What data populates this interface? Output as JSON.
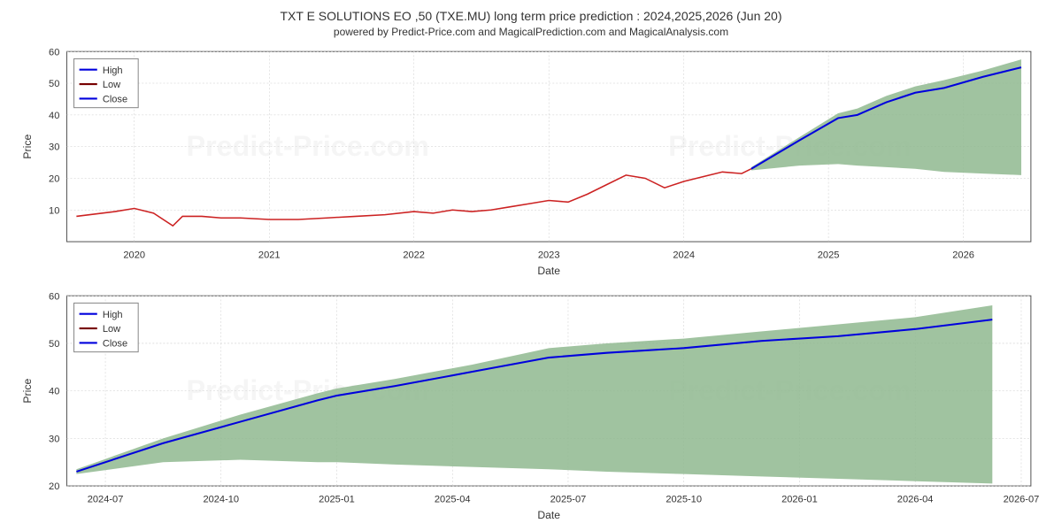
{
  "chart_title": "TXT E SOLUTIONS EO ,50 (TXE.MU) long term price prediction : 2024,2025,2026 (Jun 20)",
  "chart_subtitle": "powered by Predict-Price.com and MagicalPrediction.com and MagicalAnalysis.com",
  "watermark": "Predict-Price.com",
  "top_chart": {
    "type": "line_with_area",
    "ylabel": "Price",
    "xlabel": "Date",
    "ylim": [
      0,
      60
    ],
    "yticks": [
      10,
      20,
      30,
      40,
      50,
      60
    ],
    "xticks": [
      "2020",
      "2021",
      "2022",
      "2023",
      "2024",
      "2025",
      "2026"
    ],
    "xtick_positions": [
      0.07,
      0.21,
      0.36,
      0.5,
      0.64,
      0.79,
      0.93
    ],
    "legend": {
      "items": [
        "High",
        "Low",
        "Close"
      ],
      "colors": [
        "#0000dd",
        "#770000",
        "#0000dd"
      ]
    },
    "background_color": "#ffffff",
    "grid_color": "#cccccc",
    "historical_line": {
      "color": "#cc2222",
      "data": [
        [
          0.01,
          8.0
        ],
        [
          0.05,
          9.5
        ],
        [
          0.07,
          10.5
        ],
        [
          0.09,
          9.0
        ],
        [
          0.11,
          5.0
        ],
        [
          0.12,
          8.0
        ],
        [
          0.14,
          8.0
        ],
        [
          0.16,
          7.5
        ],
        [
          0.18,
          7.5
        ],
        [
          0.21,
          7.0
        ],
        [
          0.24,
          7.0
        ],
        [
          0.27,
          7.5
        ],
        [
          0.3,
          8.0
        ],
        [
          0.33,
          8.5
        ],
        [
          0.36,
          9.5
        ],
        [
          0.38,
          9.0
        ],
        [
          0.4,
          10.0
        ],
        [
          0.42,
          9.5
        ],
        [
          0.44,
          10.0
        ],
        [
          0.46,
          11.0
        ],
        [
          0.48,
          12.0
        ],
        [
          0.5,
          13.0
        ],
        [
          0.52,
          12.5
        ],
        [
          0.54,
          15.0
        ],
        [
          0.56,
          18.0
        ],
        [
          0.58,
          21.0
        ],
        [
          0.6,
          20.0
        ],
        [
          0.62,
          17.0
        ],
        [
          0.64,
          19.0
        ],
        [
          0.66,
          20.5
        ],
        [
          0.68,
          22.0
        ],
        [
          0.7,
          21.5
        ],
        [
          0.71,
          23.0
        ]
      ]
    },
    "forecast_line": {
      "color": "#0000dd",
      "stroke_width": 2,
      "data": [
        [
          0.71,
          23.0
        ],
        [
          0.76,
          32.0
        ],
        [
          0.8,
          39.0
        ],
        [
          0.82,
          40.0
        ],
        [
          0.85,
          44.0
        ],
        [
          0.88,
          47.0
        ],
        [
          0.91,
          48.5
        ],
        [
          0.95,
          52.0
        ],
        [
          0.99,
          55.0
        ]
      ]
    },
    "forecast_area": {
      "color": "#8fb98f",
      "upper": [
        [
          0.71,
          23.5
        ],
        [
          0.76,
          33.0
        ],
        [
          0.8,
          40.5
        ],
        [
          0.82,
          42.0
        ],
        [
          0.85,
          46.0
        ],
        [
          0.88,
          49.0
        ],
        [
          0.91,
          51.0
        ],
        [
          0.95,
          54.0
        ],
        [
          0.99,
          57.5
        ]
      ],
      "lower": [
        [
          0.71,
          22.5
        ],
        [
          0.76,
          24.0
        ],
        [
          0.8,
          24.5
        ],
        [
          0.82,
          24.0
        ],
        [
          0.85,
          23.5
        ],
        [
          0.88,
          23.0
        ],
        [
          0.91,
          22.0
        ],
        [
          0.95,
          21.5
        ],
        [
          0.99,
          21.0
        ]
      ]
    }
  },
  "bottom_chart": {
    "type": "line_with_area",
    "ylabel": "Price",
    "xlabel": "Date",
    "ylim": [
      20,
      60
    ],
    "yticks": [
      20,
      30,
      40,
      50,
      60
    ],
    "xticks": [
      "2024-07",
      "2024-10",
      "2025-01",
      "2025-04",
      "2025-07",
      "2025-10",
      "2026-01",
      "2026-04",
      "2026-07"
    ],
    "xtick_positions": [
      0.04,
      0.16,
      0.28,
      0.4,
      0.52,
      0.64,
      0.76,
      0.88,
      0.99
    ],
    "legend": {
      "items": [
        "High",
        "Low",
        "Close"
      ],
      "colors": [
        "#0000dd",
        "#770000",
        "#0000dd"
      ]
    },
    "forecast_line": {
      "color": "#0000dd",
      "stroke_width": 2,
      "data": [
        [
          0.01,
          23.0
        ],
        [
          0.1,
          29.0
        ],
        [
          0.18,
          33.5
        ],
        [
          0.26,
          38.0
        ],
        [
          0.28,
          39.0
        ],
        [
          0.34,
          41.0
        ],
        [
          0.42,
          44.0
        ],
        [
          0.5,
          47.0
        ],
        [
          0.56,
          48.0
        ],
        [
          0.64,
          49.0
        ],
        [
          0.72,
          50.5
        ],
        [
          0.8,
          51.5
        ],
        [
          0.88,
          53.0
        ],
        [
          0.96,
          55.0
        ]
      ]
    },
    "forecast_area": {
      "color": "#8fb98f",
      "upper": [
        [
          0.01,
          23.5
        ],
        [
          0.1,
          30.0
        ],
        [
          0.18,
          35.0
        ],
        [
          0.26,
          39.5
        ],
        [
          0.28,
          40.5
        ],
        [
          0.34,
          42.5
        ],
        [
          0.42,
          45.5
        ],
        [
          0.5,
          49.0
        ],
        [
          0.56,
          50.0
        ],
        [
          0.64,
          51.0
        ],
        [
          0.72,
          52.5
        ],
        [
          0.8,
          54.0
        ],
        [
          0.88,
          55.5
        ],
        [
          0.96,
          58.0
        ]
      ],
      "lower": [
        [
          0.01,
          22.5
        ],
        [
          0.1,
          25.0
        ],
        [
          0.18,
          25.5
        ],
        [
          0.26,
          25.0
        ],
        [
          0.28,
          25.0
        ],
        [
          0.34,
          24.5
        ],
        [
          0.42,
          24.0
        ],
        [
          0.5,
          23.5
        ],
        [
          0.56,
          23.0
        ],
        [
          0.64,
          22.5
        ],
        [
          0.72,
          22.0
        ],
        [
          0.8,
          21.5
        ],
        [
          0.88,
          21.0
        ],
        [
          0.96,
          20.5
        ]
      ]
    }
  }
}
